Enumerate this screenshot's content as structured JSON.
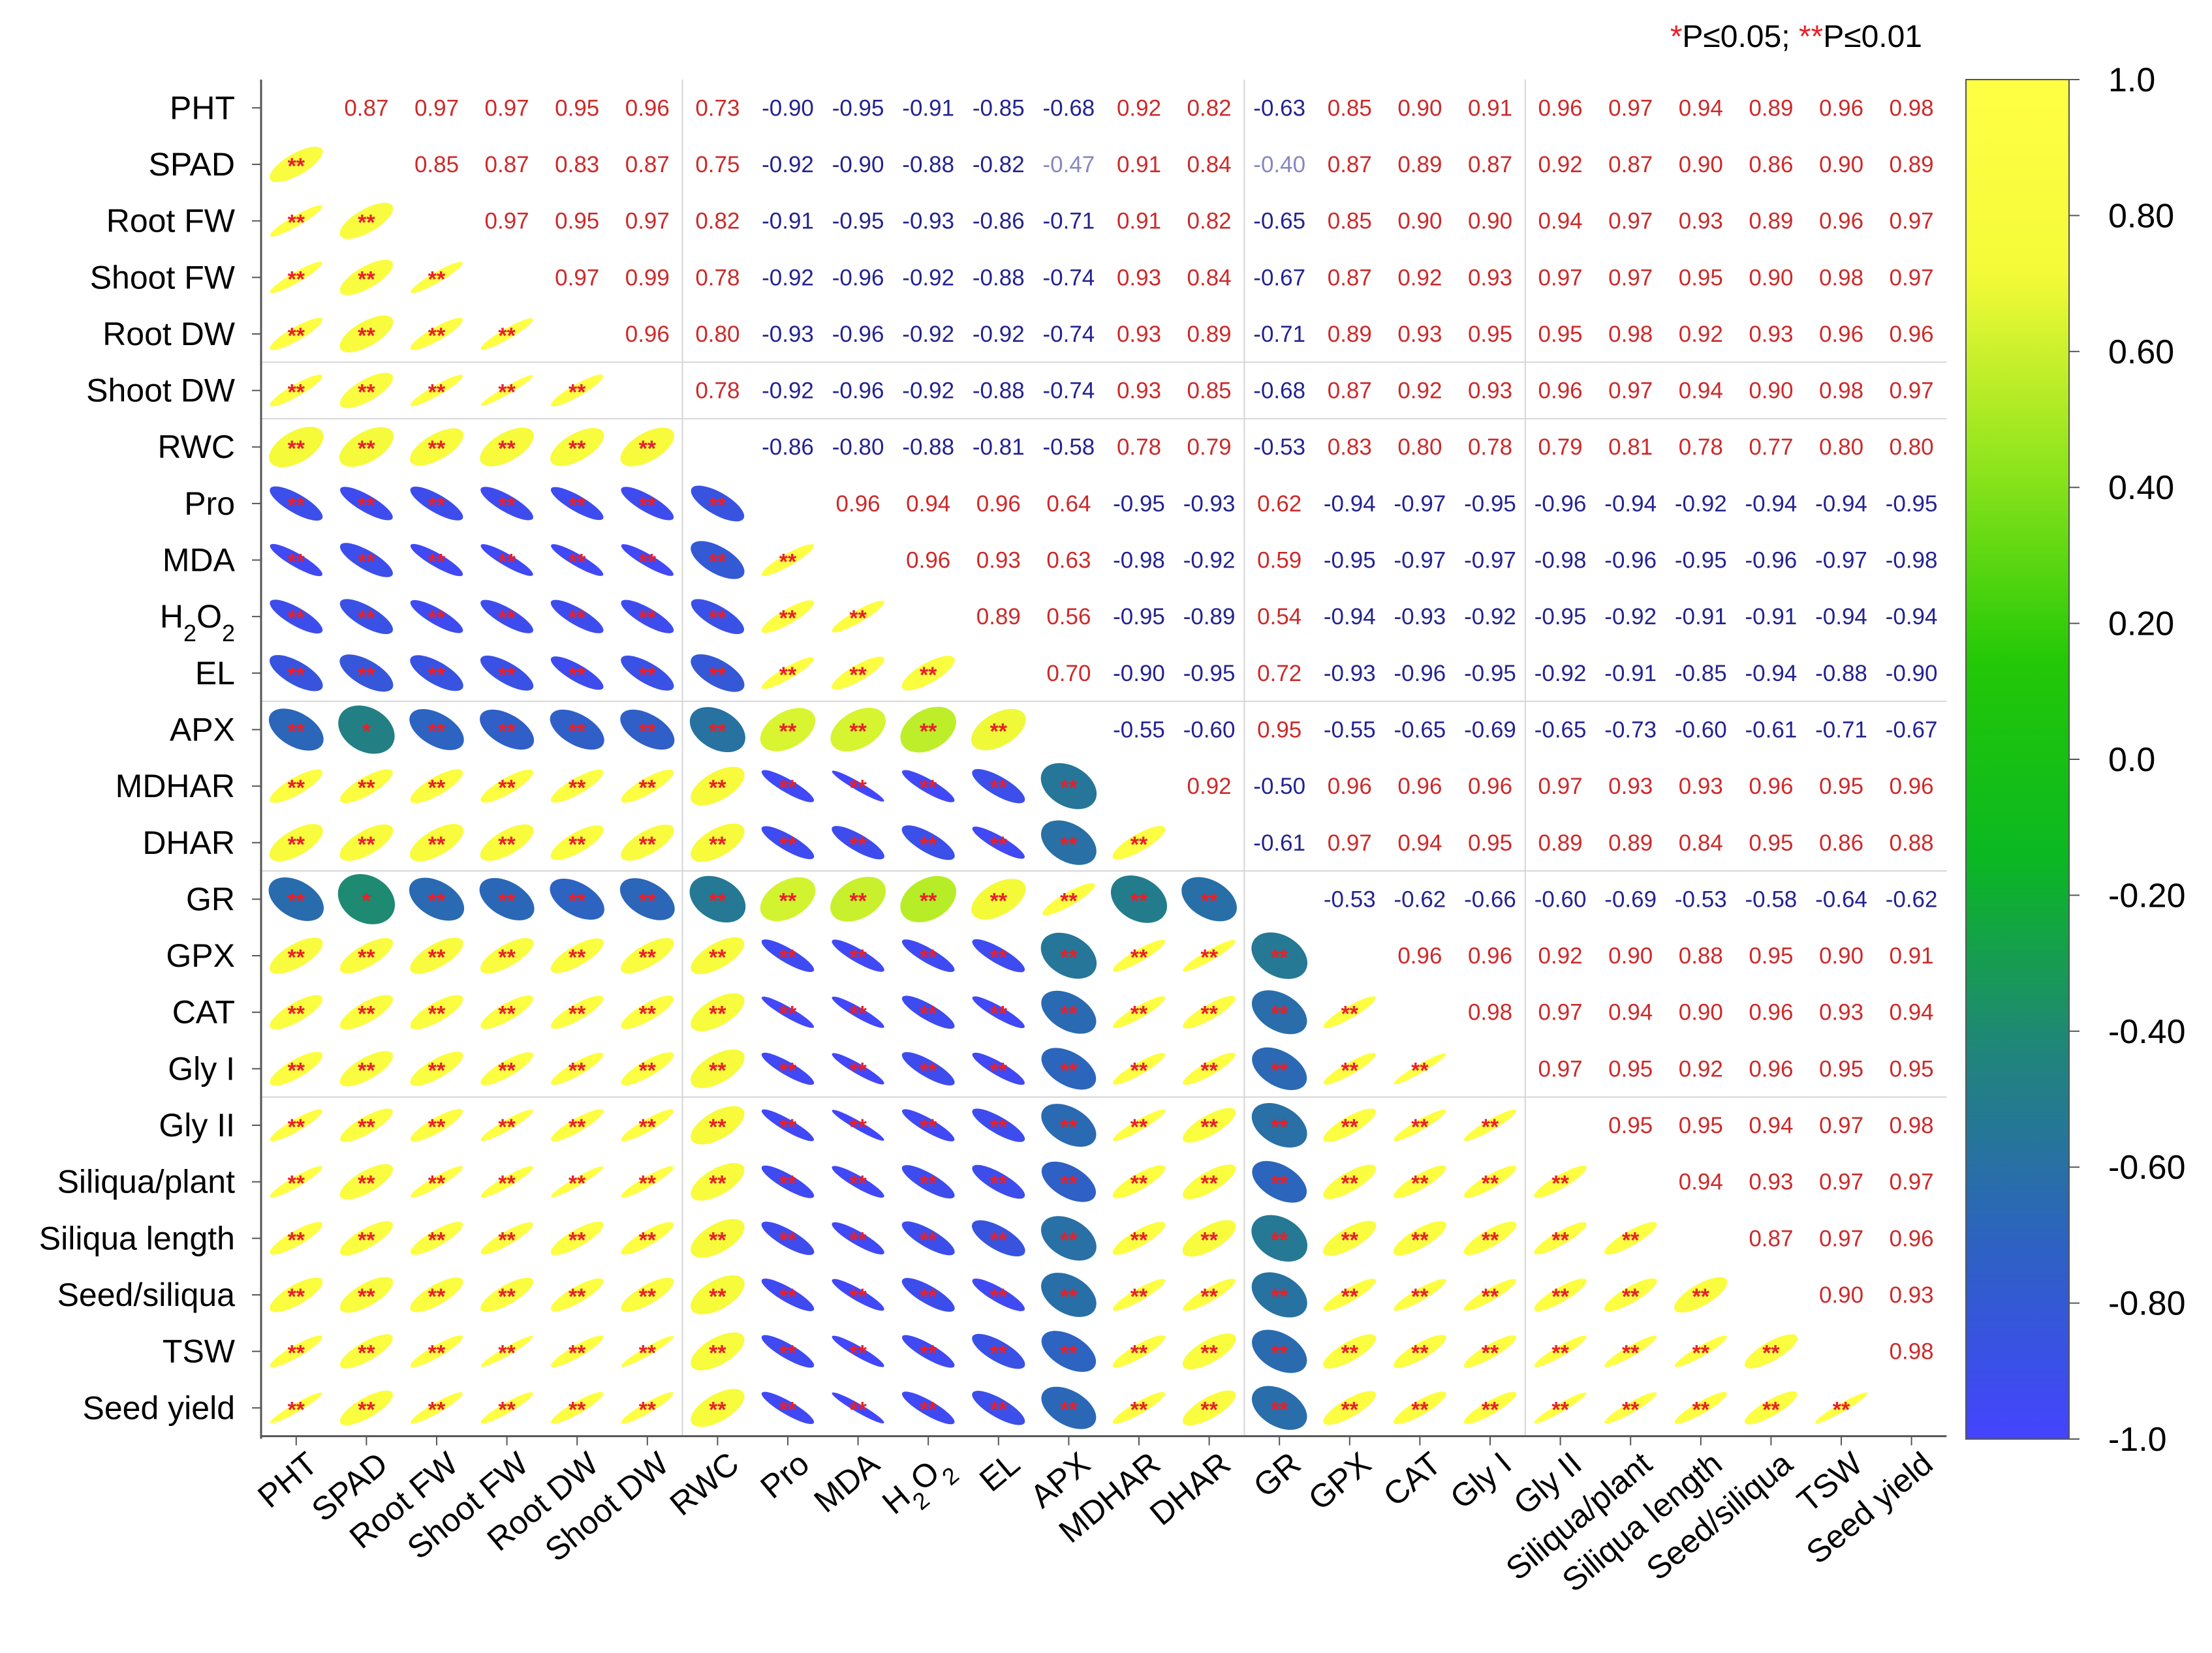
{
  "chart_data": {
    "type": "heatmap",
    "subtype": "correlation-ellipse",
    "significance_note": {
      "star1": "*",
      "text1": "P≤0.05; ",
      "star2": "**",
      "text2": "P≤0.01"
    },
    "variables": [
      "PHT",
      "SPAD",
      "Root FW",
      "Shoot FW",
      "Root DW",
      "Shoot DW",
      "RWC",
      "Pro",
      "MDA",
      "H2O2",
      "EL",
      "APX",
      "MDHAR",
      "DHAR",
      "GR",
      "GPX",
      "CAT",
      "Gly I",
      "Gly II",
      "Siliqua/plant",
      "Siliqua length",
      "Seed/siliqua",
      "TSW",
      "Seed yield"
    ],
    "colorbar": {
      "min": -1.0,
      "max": 1.0,
      "ticks": [
        "1.0",
        "0.80",
        "0.60",
        "0.40",
        "0.20",
        "0.0",
        "-0.20",
        "-0.40",
        "-0.60",
        "-0.80",
        "-1.0"
      ],
      "colors": [
        "#4444ff",
        "#2d62c2",
        "#20857a",
        "#0bb822",
        "#23c806",
        "#8ee41c",
        "#f4fa38",
        "#ffff44"
      ]
    },
    "colors": {
      "positive_text": "#cc2a2a",
      "negative_text": "#23238f",
      "significance": "#e8202a"
    },
    "significant_low_r": {
      "APX|SPAD": "*",
      "GR|SPAD": "*"
    },
    "upper_rows": [
      "0.87 0.97 0.97 0.95 0.96 0.73 -0.90 -0.95 -0.91 -0.85 -0.68 0.92 0.82 -0.63 0.85 0.90 0.91 0.96 0.97 0.94 0.89 0.96 0.98",
      "0.85 0.87 0.83 0.87 0.75 -0.92 -0.90 -0.88 -0.82 -0.47 0.91 0.84 -0.40 0.87 0.89 0.87 0.92 0.87 0.90 0.86 0.90 0.89",
      "0.97 0.95 0.97 0.82 -0.91 -0.95 -0.93 -0.86 -0.71 0.91 0.82 -0.65 0.85 0.90 0.90 0.94 0.97 0.93 0.89 0.96 0.97",
      "0.97 0.99 0.78 -0.92 -0.96 -0.92 -0.88 -0.74 0.93 0.84 -0.67 0.87 0.92 0.93 0.97 0.97 0.95 0.90 0.98 0.97",
      "0.96 0.80 -0.93 -0.96 -0.92 -0.92 -0.74 0.93 0.89 -0.71 0.89 0.93 0.95 0.95 0.98 0.92 0.93 0.96 0.96",
      "0.78 -0.92 -0.96 -0.92 -0.88 -0.74 0.93 0.85 -0.68 0.87 0.92 0.93 0.96 0.97 0.94 0.90 0.98 0.97",
      "-0.86 -0.80 -0.88 -0.81 -0.58 0.78 0.79 -0.53 0.83 0.80 0.78 0.79 0.81 0.78 0.77 0.80 0.80",
      "0.96 0.94 0.96 0.64 -0.95 -0.93 0.62 -0.94 -0.97 -0.95 -0.96 -0.94 -0.92 -0.94 -0.94 -0.95",
      "0.96 0.93 0.63 -0.98 -0.92 0.59 -0.95 -0.97 -0.97 -0.98 -0.96 -0.95 -0.96 -0.97 -0.98",
      "0.89 0.56 -0.95 -0.89 0.54 -0.94 -0.93 -0.92 -0.95 -0.92 -0.91 -0.91 -0.94 -0.94",
      "0.70 -0.90 -0.95 0.72 -0.93 -0.96 -0.95 -0.92 -0.91 -0.85 -0.94 -0.88 -0.90",
      "-0.55 -0.60 0.95 -0.55 -0.65 -0.69 -0.65 -0.73 -0.60 -0.61 -0.71 -0.67",
      "0.92 -0.50 0.96 0.96 0.96 0.97 0.93 0.93 0.96 0.95 0.96",
      "-0.61 0.97 0.94 0.95 0.89 0.89 0.84 0.95 0.86 0.88",
      "-0.53 -0.62 -0.66 -0.60 -0.69 -0.53 -0.58 -0.64 -0.62",
      "0.96 0.96 0.92 0.90 0.88 0.95 0.90 0.91",
      "0.98 0.97 0.94 0.90 0.96 0.93 0.94",
      "0.97 0.95 0.92 0.96 0.95 0.95",
      "0.95 0.95 0.94 0.97 0.98",
      "0.94 0.93 0.97 0.97",
      "0.87 0.97 0.96",
      "0.90 0.93",
      "0.98",
      ""
    ]
  }
}
